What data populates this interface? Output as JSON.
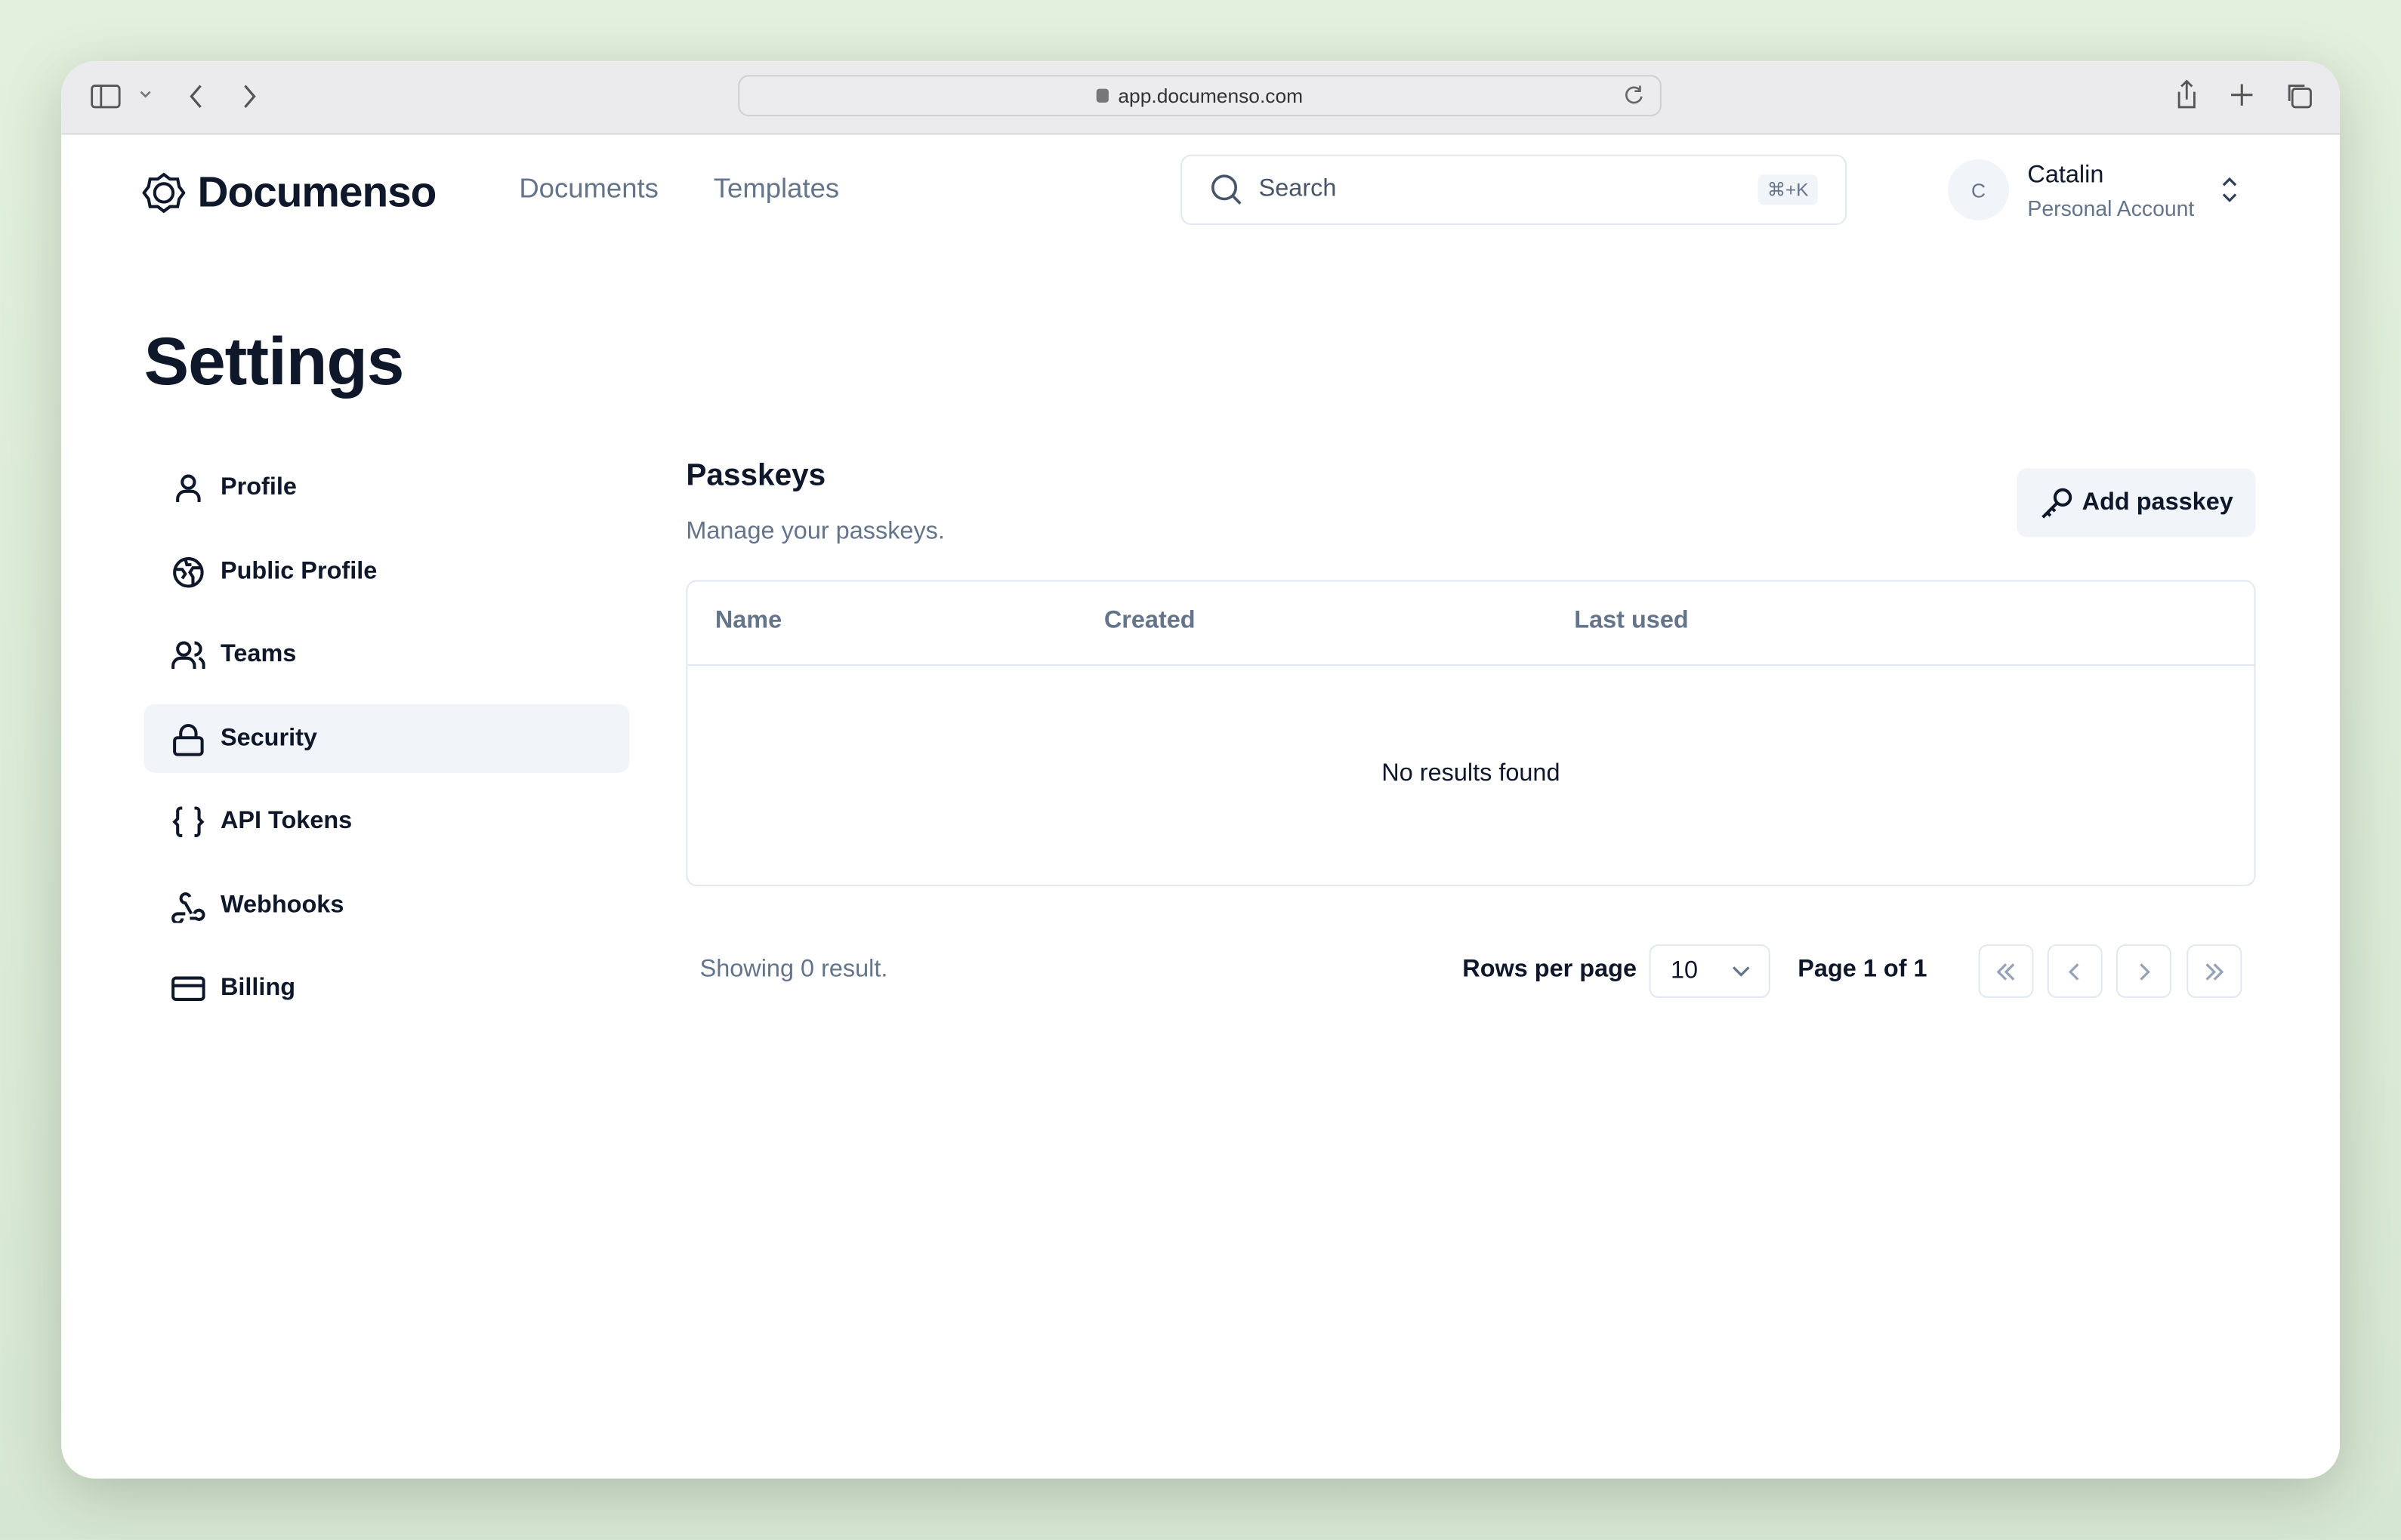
{
  "browser": {
    "url": "app.documenso.com"
  },
  "header": {
    "brand": "Documenso",
    "nav": [
      "Documents",
      "Templates"
    ],
    "search_placeholder": "Search",
    "search_shortcut": "⌘+K",
    "user": {
      "initial": "C",
      "name": "Catalin",
      "account": "Personal Account"
    }
  },
  "page_title": "Settings",
  "sidebar": {
    "items": [
      {
        "label": "Profile",
        "icon": "user-icon"
      },
      {
        "label": "Public Profile",
        "icon": "globe-icon"
      },
      {
        "label": "Teams",
        "icon": "users-icon"
      },
      {
        "label": "Security",
        "icon": "lock-icon",
        "active": true
      },
      {
        "label": "API Tokens",
        "icon": "braces-icon"
      },
      {
        "label": "Webhooks",
        "icon": "webhook-icon"
      },
      {
        "label": "Billing",
        "icon": "credit-card-icon"
      }
    ]
  },
  "section": {
    "title": "Passkeys",
    "subtitle": "Manage your passkeys.",
    "add_button": "Add passkey"
  },
  "table": {
    "columns": [
      "Name",
      "Created",
      "Last used"
    ],
    "empty": "No results found"
  },
  "footer": {
    "showing": "Showing 0 result.",
    "rows_label": "Rows per page",
    "rows_value": "10",
    "page": "Page 1 of 1"
  }
}
